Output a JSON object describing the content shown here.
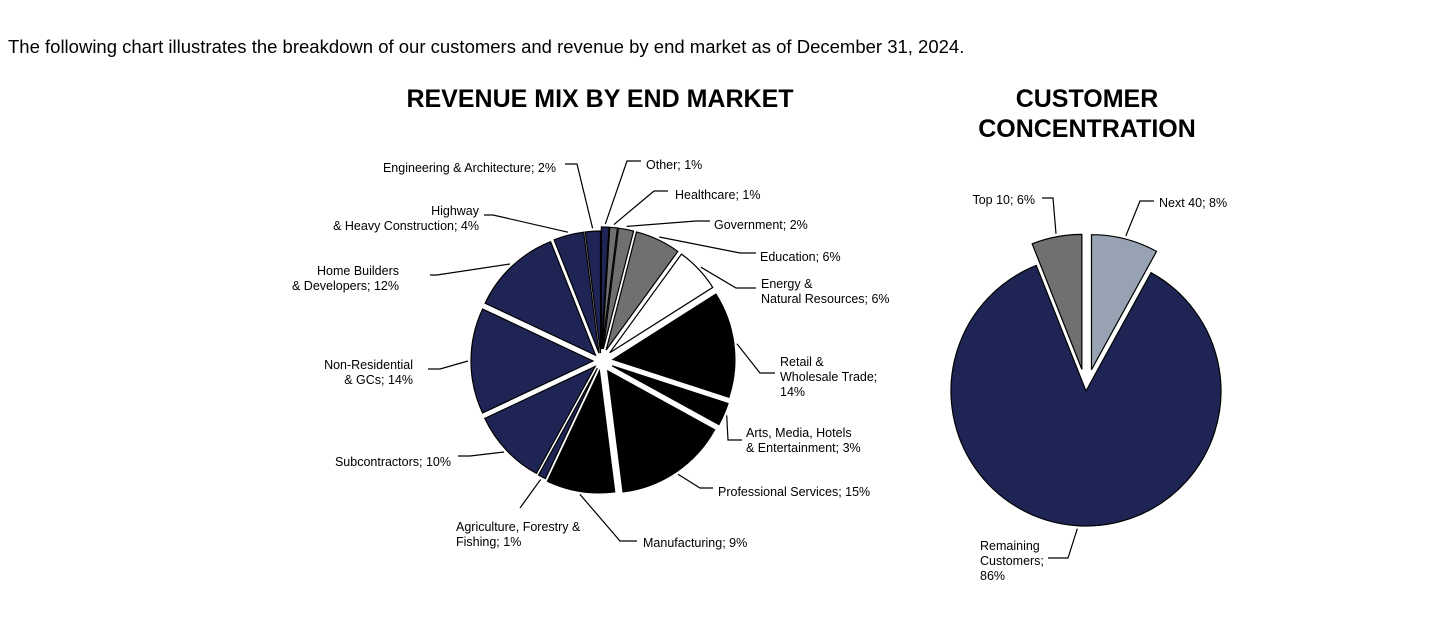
{
  "intro_text": "The following chart illustrates the breakdown of our customers and revenue by end market as of December 31, 2024.",
  "colors": {
    "navy": "#1e2555",
    "black": "#000000",
    "gray": "#707070",
    "white": "#ffffff",
    "slate": "#97a3b3"
  },
  "chart_data": [
    {
      "type": "pie",
      "title": "REVENUE MIX BY END MARKET",
      "slices": [
        {
          "name": "Other",
          "label_lines": [
            "Other; 1%"
          ],
          "value": 1,
          "color": "navy"
        },
        {
          "name": "Healthcare",
          "label_lines": [
            "Healthcare; 1%"
          ],
          "value": 1,
          "color": "gray"
        },
        {
          "name": "Government",
          "label_lines": [
            "Government; 2%"
          ],
          "value": 2,
          "color": "gray"
        },
        {
          "name": "Education",
          "label_lines": [
            "Education; 6%"
          ],
          "value": 6,
          "color": "gray"
        },
        {
          "name": "Energy & Natural Resources",
          "label_lines": [
            "Energy &",
            "Natural Resources; 6%"
          ],
          "value": 6,
          "color": "white"
        },
        {
          "name": "Retail & Wholesale Trade",
          "label_lines": [
            "Retail &",
            "Wholesale Trade;",
            "14%"
          ],
          "value": 14,
          "color": "black"
        },
        {
          "name": "Arts, Media, Hotels & Entertainment",
          "label_lines": [
            "Arts, Media, Hotels",
            "& Entertainment; 3%"
          ],
          "value": 3,
          "color": "black"
        },
        {
          "name": "Professional Services",
          "label_lines": [
            "Professional Services; 15%"
          ],
          "value": 15,
          "color": "black"
        },
        {
          "name": "Manufacturing",
          "label_lines": [
            "Manufacturing; 9%"
          ],
          "value": 9,
          "color": "black"
        },
        {
          "name": "Agriculture, Forestry & Fishing",
          "label_lines": [
            "Agriculture, Forestry &",
            "Fishing; 1%"
          ],
          "value": 1,
          "color": "navy"
        },
        {
          "name": "Subcontractors",
          "label_lines": [
            "Subcontractors; 10%"
          ],
          "value": 10,
          "color": "navy"
        },
        {
          "name": "Non-Residential & GCs",
          "label_lines": [
            "Non-Residential",
            "& GCs; 14%"
          ],
          "value": 14,
          "color": "navy"
        },
        {
          "name": "Home Builders & Developers",
          "label_lines": [
            "Home Builders",
            "& Developers; 12%"
          ],
          "value": 12,
          "color": "navy"
        },
        {
          "name": "Highway & Heavy Construction",
          "label_lines": [
            "Highway",
            "& Heavy Construction; 4%"
          ],
          "value": 4,
          "color": "navy"
        },
        {
          "name": "Engineering & Architecture",
          "label_lines": [
            "Engineering & Architecture; 2%"
          ],
          "value": 2,
          "color": "navy"
        }
      ]
    },
    {
      "type": "pie",
      "title": "CUSTOMER CONCENTRATION",
      "title_lines": [
        "CUSTOMER",
        "CONCENTRATION"
      ],
      "slices": [
        {
          "name": "Next 40",
          "label_lines": [
            "Next 40; 8%"
          ],
          "value": 8,
          "color": "slate"
        },
        {
          "name": "Remaining Customers",
          "label_lines": [
            "Remaining",
            "Customers;",
            "86%"
          ],
          "value": 86,
          "color": "navy"
        },
        {
          "name": "Top 10",
          "label_lines": [
            "Top 10; 6%"
          ],
          "value": 6,
          "color": "gray"
        }
      ]
    }
  ]
}
